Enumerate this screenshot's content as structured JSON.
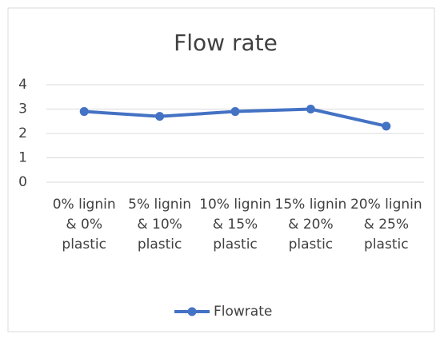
{
  "chart_data": {
    "type": "line",
    "title": "Flow rate",
    "categories": [
      "0% lignin & 0% plastic",
      "5% lignin & 10% plastic",
      "10% lignin & 15% plastic",
      "15% lignin & 20% plastic",
      "20% lignin & 25% plastic"
    ],
    "series": [
      {
        "name": "Flowrate",
        "color": "#4472c4",
        "values": [
          2.9,
          2.7,
          2.9,
          3.0,
          2.3
        ]
      }
    ],
    "ylim": [
      0,
      4
    ],
    "yticks": [
      0,
      1,
      2,
      3,
      4
    ],
    "grid": true,
    "legend": "bottom"
  }
}
